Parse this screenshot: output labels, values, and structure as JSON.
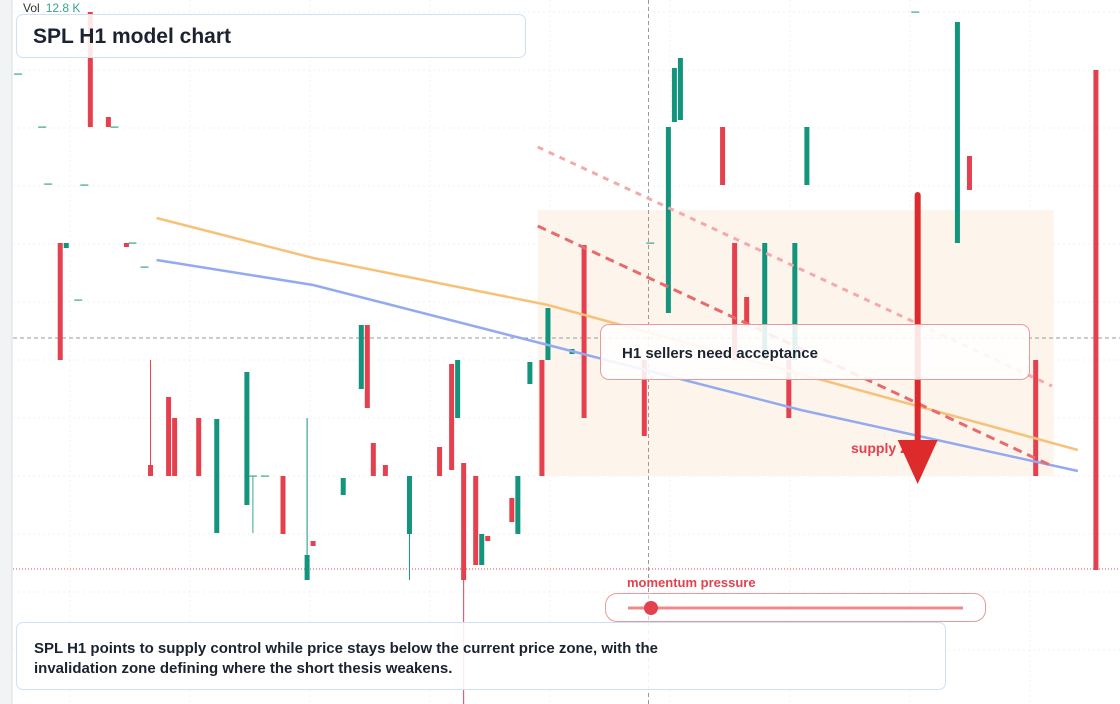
{
  "chart_data": {
    "type": "candlestick",
    "title": "SPL H1 model chart",
    "vol_label": "Vol",
    "vol_value": "12.8 K",
    "xlim": [
      -2,
      184
    ],
    "ylim": [
      0,
      70.4
    ],
    "up_color": "#12957c",
    "down_color": "#e5404e",
    "doji_color": "#3aa58e",
    "candles": {
      "x": [
        1,
        5,
        6,
        8,
        9,
        11,
        12,
        13,
        16,
        17,
        19,
        20,
        22,
        23,
        26,
        27,
        31,
        34,
        39,
        40,
        42,
        45,
        49,
        50,
        55,
        58,
        59,
        60,
        62,
        66,
        71,
        73,
        74,
        75,
        77,
        78,
        79,
        83,
        84,
        86,
        88,
        89,
        93,
        95,
        105,
        106,
        109,
        110,
        111,
        118,
        120,
        122,
        125,
        129,
        130,
        132,
        150,
        157,
        159,
        170,
        180
      ],
      "open": [
        63.0,
        57.7,
        52.0,
        46.1,
        45.6,
        40.4,
        51.9,
        69.2,
        58.7,
        57.7,
        46.1,
        46.1,
        43.7,
        23.9,
        30.7,
        28.6,
        28.6,
        17.1,
        19.9,
        22.8,
        22.8,
        22.8,
        12.4,
        16.3,
        20.9,
        31.5,
        37.9,
        26.1,
        23.9,
        17.0,
        25.7,
        34.0,
        28.6,
        24.1,
        22.8,
        13.9,
        16.8,
        20.6,
        17.0,
        32.0,
        34.4,
        34.4,
        35.0,
        45.9,
        34.4,
        46.1,
        39.1,
        58.2,
        58.4,
        57.7,
        46.1,
        40.7,
        34.4,
        34.4,
        34.4,
        51.9,
        69.2,
        46.1,
        54.8,
        34.4,
        63.4
      ],
      "high": [
        63.0,
        57.7,
        52.0,
        46.1,
        46.1,
        40.4,
        51.9,
        69.2,
        58.7,
        57.7,
        46.1,
        46.1,
        43.7,
        34.4,
        30.7,
        28.6,
        28.6,
        28.5,
        33.2,
        22.8,
        22.8,
        22.8,
        28.6,
        16.3,
        22.6,
        37.9,
        37.9,
        26.1,
        23.9,
        22.8,
        25.7,
        34.0,
        34.4,
        24.1,
        22.8,
        17.0,
        16.8,
        20.6,
        22.8,
        34.2,
        34.4,
        39.6,
        35.5,
        45.9,
        34.4,
        46.1,
        57.7,
        63.6,
        64.6,
        57.7,
        46.1,
        40.7,
        46.1,
        34.4,
        46.1,
        57.7,
        69.2,
        68.2,
        54.8,
        34.4,
        63.4
      ],
      "low": [
        63.0,
        57.7,
        52.0,
        34.4,
        45.6,
        40.4,
        51.9,
        57.7,
        57.7,
        57.7,
        45.7,
        46.1,
        43.7,
        22.8,
        22.8,
        22.8,
        22.8,
        17.1,
        19.9,
        17.1,
        22.8,
        17.0,
        12.4,
        15.8,
        20.9,
        31.5,
        29.6,
        22.8,
        22.8,
        12.4,
        22.8,
        23.4,
        28.6,
        0.0,
        13.9,
        13.9,
        16.3,
        18.2,
        17.0,
        32.0,
        22.8,
        34.4,
        35.0,
        28.6,
        26.8,
        46.1,
        39.1,
        58.2,
        58.4,
        51.9,
        34.4,
        37.9,
        34.4,
        28.6,
        34.4,
        51.9,
        69.2,
        46.1,
        51.4,
        22.8,
        13.4
      ],
      "close": [
        63.0,
        57.7,
        52.0,
        34.4,
        46.1,
        40.4,
        51.9,
        57.7,
        57.7,
        57.7,
        45.7,
        46.1,
        43.7,
        22.8,
        22.8,
        22.8,
        22.8,
        28.5,
        33.2,
        22.8,
        22.8,
        17.0,
        14.9,
        15.8,
        22.6,
        37.9,
        29.6,
        22.8,
        22.8,
        22.8,
        22.8,
        23.4,
        34.4,
        12.4,
        13.9,
        17.0,
        16.3,
        18.2,
        22.8,
        34.2,
        22.8,
        39.6,
        35.5,
        28.6,
        26.8,
        46.1,
        57.7,
        63.6,
        64.6,
        51.9,
        34.4,
        37.9,
        46.1,
        28.6,
        46.1,
        57.7,
        69.2,
        68.2,
        51.4,
        22.8,
        13.4
      ]
    },
    "lines": [
      {
        "color": "#f6c27a",
        "x": [
          24,
          50,
          89,
          177
        ],
        "values": [
          48.6,
          44.6,
          39.9,
          25.4
        ]
      },
      {
        "color": "#93aaf0",
        "x": [
          24,
          50,
          89,
          131,
          177
        ],
        "values": [
          44.4,
          41.9,
          35.9,
          29.4,
          23.3
        ]
      },
      {
        "color": "#f3aaaa",
        "dashed": true,
        "x": [
          87.3,
          172.7
        ],
        "values": [
          55.7,
          31.8
        ]
      },
      {
        "color": "#e86b6b",
        "dashed": true,
        "x": [
          87.3,
          172.7
        ],
        "values": [
          47.8,
          23.8
        ]
      }
    ],
    "levels": [
      {
        "value": 36.6,
        "color": "#9a9a9a",
        "style": "dashed"
      },
      {
        "value": 13.5,
        "color": "#e5404e",
        "style": "dotted"
      }
    ],
    "crosshair_x": 105.7,
    "zone": {
      "x": [
        87.3,
        173
      ],
      "low": 22.8,
      "high": 49.4,
      "color": "#fdf4ec"
    },
    "arrow": {
      "x": 150.4,
      "from": 50.9,
      "to": 22.0,
      "color": "#dd2a2a"
    },
    "callout": "H1 sellers need acceptance",
    "zone_label": "supply zone",
    "momentum_label": "momentum pressure",
    "summary": "SPL H1 points to supply control while price stays below the current price zone, with the invalidation zone defining where the short thesis weakens."
  }
}
